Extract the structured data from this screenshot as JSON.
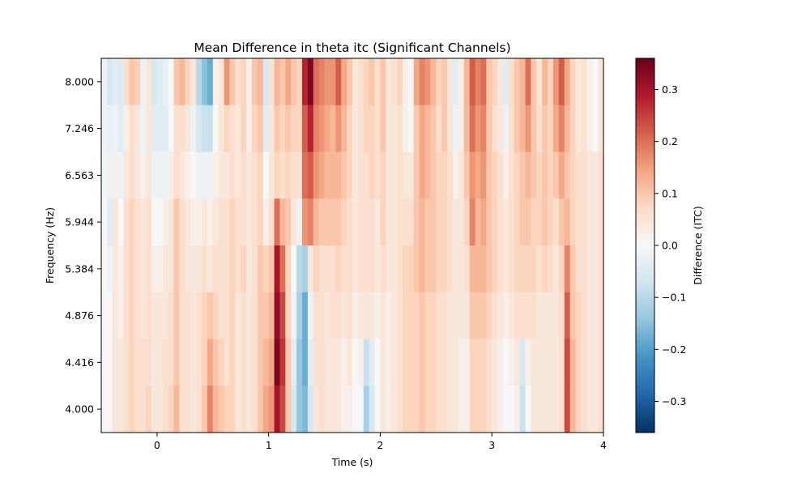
{
  "chart_data": {
    "type": "heatmap",
    "title": "Mean Difference in theta itc (Significant Channels)",
    "xlabel": "Time (s)",
    "ylabel": "Frequency (Hz)",
    "xlim": [
      -0.5,
      4.0
    ],
    "x_ticks": [
      0,
      1,
      2,
      3,
      4
    ],
    "y_tick_labels": [
      "8.000",
      "7.246",
      "6.563",
      "5.944",
      "5.384",
      "4.876",
      "4.416",
      "4.000"
    ],
    "colorbar": {
      "label": "Difference (ITC)",
      "vmin": -0.36,
      "vmax": 0.36,
      "ticks": [
        -0.3,
        -0.2,
        -0.1,
        0.0,
        0.1,
        0.2,
        0.3
      ],
      "tick_labels": [
        "−0.3",
        "−0.2",
        "−0.1",
        "0.0",
        "0.1",
        "0.2",
        "0.3"
      ],
      "colormap": "RdBu_r"
    },
    "time_step": 0.05,
    "time_start": -0.5,
    "rows": [
      {
        "freq": "8.000",
        "values": [
          -0.02,
          -0.06,
          -0.04,
          -0.05,
          0.06,
          0.1,
          0.09,
          -0.02,
          0.05,
          -0.06,
          -0.04,
          -0.03,
          0.0,
          0.1,
          0.12,
          0.08,
          0.04,
          -0.1,
          -0.15,
          -0.18,
          0.02,
          0.04,
          0.16,
          0.1,
          0.06,
          0.08,
          0.02,
          0.1,
          0.12,
          -0.06,
          0.05,
          0.12,
          0.1,
          0.14,
          0.1,
          0.08,
          0.28,
          0.34,
          0.2,
          0.18,
          0.16,
          0.16,
          0.22,
          0.14,
          0.1,
          0.04,
          0.06,
          0.08,
          0.1,
          0.06,
          0.1,
          0.04,
          0.06,
          0.08,
          0.02,
          0.0,
          0.14,
          0.18,
          0.16,
          0.12,
          0.08,
          0.1,
          0.04,
          -0.04,
          0.02,
          0.12,
          0.22,
          0.18,
          0.2,
          0.1,
          0.08,
          0.04,
          -0.04,
          0.06,
          0.1,
          0.12,
          0.2,
          0.1,
          0.05,
          0.12,
          0.08,
          0.16,
          0.22,
          0.14,
          0.08,
          0.04,
          0.06,
          0.02,
          0.0,
          0.04,
          0.08
        ]
      },
      {
        "freq": "7.246",
        "values": [
          -0.02,
          -0.03,
          -0.02,
          -0.04,
          0.02,
          0.06,
          0.04,
          -0.02,
          0.04,
          -0.04,
          -0.04,
          -0.04,
          0.0,
          0.06,
          0.06,
          0.04,
          -0.02,
          -0.06,
          -0.08,
          -0.08,
          0.0,
          0.04,
          0.08,
          0.06,
          0.04,
          0.08,
          0.02,
          0.08,
          0.1,
          -0.04,
          0.04,
          0.1,
          0.08,
          0.1,
          0.08,
          0.08,
          0.22,
          0.28,
          0.18,
          0.16,
          0.14,
          0.12,
          0.16,
          0.12,
          0.08,
          0.04,
          0.06,
          0.08,
          0.08,
          0.06,
          0.1,
          0.04,
          0.04,
          0.06,
          0.02,
          0.0,
          0.1,
          0.14,
          0.12,
          0.1,
          0.06,
          0.1,
          0.04,
          -0.02,
          0.02,
          0.12,
          0.2,
          0.16,
          0.18,
          0.1,
          0.06,
          0.04,
          -0.02,
          0.06,
          0.1,
          0.12,
          0.16,
          0.1,
          0.06,
          0.1,
          0.08,
          0.14,
          0.18,
          0.12,
          0.08,
          0.04,
          0.06,
          0.02,
          0.0,
          0.04,
          0.08
        ]
      },
      {
        "freq": "6.563",
        "values": [
          -0.01,
          -0.02,
          0.02,
          -0.02,
          0.04,
          0.06,
          0.04,
          0.02,
          0.04,
          -0.02,
          -0.02,
          -0.02,
          0.02,
          0.06,
          0.04,
          0.02,
          0.0,
          -0.02,
          -0.02,
          -0.02,
          0.02,
          0.04,
          0.04,
          0.06,
          0.04,
          0.06,
          0.04,
          0.06,
          0.08,
          0.0,
          0.04,
          0.08,
          0.06,
          0.08,
          0.06,
          0.06,
          0.2,
          0.22,
          0.16,
          0.14,
          0.12,
          0.12,
          0.12,
          0.1,
          0.08,
          0.04,
          0.06,
          0.06,
          0.08,
          0.06,
          0.08,
          0.04,
          0.04,
          0.06,
          0.04,
          0.04,
          0.1,
          0.14,
          0.12,
          0.1,
          0.08,
          0.08,
          0.06,
          0.02,
          0.04,
          0.1,
          0.16,
          0.14,
          0.16,
          0.1,
          0.08,
          0.06,
          0.02,
          0.06,
          0.08,
          0.1,
          0.12,
          0.1,
          0.08,
          0.1,
          0.08,
          0.1,
          0.14,
          0.1,
          0.08,
          0.06,
          0.06,
          0.04,
          0.04,
          0.06,
          0.06
        ]
      },
      {
        "freq": "5.944",
        "values": [
          0.0,
          -0.04,
          0.04,
          0.0,
          0.06,
          0.08,
          0.06,
          0.04,
          0.06,
          0.0,
          0.0,
          0.02,
          0.04,
          0.1,
          0.06,
          0.04,
          0.02,
          0.02,
          0.04,
          0.02,
          0.04,
          0.06,
          0.06,
          0.08,
          0.06,
          0.06,
          0.04,
          0.06,
          0.08,
          0.02,
          0.06,
          0.2,
          0.12,
          0.1,
          0.04,
          -0.02,
          0.16,
          0.18,
          0.12,
          0.1,
          0.1,
          0.1,
          0.1,
          0.08,
          0.06,
          0.04,
          0.06,
          0.06,
          0.06,
          0.04,
          0.08,
          0.04,
          0.04,
          0.06,
          0.06,
          0.06,
          0.1,
          0.12,
          0.1,
          0.1,
          0.08,
          0.08,
          0.06,
          0.04,
          0.04,
          0.08,
          0.18,
          0.12,
          0.14,
          0.1,
          0.08,
          0.06,
          0.04,
          0.06,
          0.08,
          0.1,
          0.1,
          0.08,
          0.08,
          0.1,
          0.08,
          0.06,
          0.1,
          0.12,
          0.08,
          0.06,
          0.06,
          0.04,
          0.04,
          0.06,
          0.06
        ]
      },
      {
        "freq": "5.384",
        "values": [
          0.0,
          -0.02,
          0.04,
          0.02,
          0.06,
          0.08,
          0.06,
          0.04,
          0.06,
          0.02,
          0.02,
          0.04,
          0.04,
          0.1,
          0.06,
          0.04,
          0.04,
          0.04,
          0.06,
          0.04,
          0.06,
          0.06,
          0.06,
          0.08,
          0.06,
          0.08,
          0.04,
          0.06,
          0.1,
          0.08,
          0.1,
          0.3,
          0.2,
          0.08,
          0.0,
          -0.1,
          -0.12,
          0.04,
          0.08,
          0.06,
          0.06,
          0.06,
          0.08,
          0.06,
          0.06,
          0.04,
          0.06,
          0.06,
          0.06,
          0.04,
          0.06,
          0.04,
          0.04,
          0.06,
          0.08,
          0.08,
          0.1,
          0.12,
          0.1,
          0.1,
          0.08,
          0.08,
          0.06,
          0.04,
          0.04,
          0.06,
          0.12,
          0.12,
          0.12,
          0.1,
          0.08,
          0.06,
          0.04,
          0.06,
          0.08,
          0.08,
          0.08,
          0.08,
          0.06,
          0.08,
          0.06,
          0.04,
          0.08,
          0.18,
          0.1,
          0.06,
          0.06,
          0.04,
          0.04,
          0.06,
          0.06
        ]
      },
      {
        "freq": "4.876",
        "values": [
          0.0,
          0.0,
          0.04,
          0.02,
          0.06,
          0.08,
          0.06,
          0.04,
          0.06,
          0.04,
          0.04,
          0.04,
          0.06,
          0.1,
          0.06,
          0.06,
          0.04,
          0.06,
          0.08,
          0.1,
          0.08,
          0.06,
          0.06,
          0.08,
          0.04,
          0.06,
          0.04,
          0.06,
          0.1,
          0.1,
          0.12,
          0.32,
          0.24,
          0.08,
          -0.02,
          -0.12,
          -0.18,
          -0.02,
          0.06,
          0.06,
          0.04,
          0.06,
          0.06,
          0.04,
          0.06,
          0.02,
          0.04,
          0.04,
          0.04,
          0.02,
          0.04,
          0.02,
          0.04,
          0.06,
          0.08,
          0.08,
          0.08,
          0.1,
          0.08,
          0.08,
          0.06,
          0.06,
          0.04,
          0.04,
          0.04,
          0.04,
          0.1,
          0.1,
          0.1,
          0.08,
          0.06,
          0.04,
          0.02,
          0.04,
          0.06,
          0.06,
          0.06,
          0.06,
          0.04,
          0.04,
          0.04,
          0.04,
          0.06,
          0.22,
          0.1,
          0.08,
          0.06,
          0.04,
          0.04,
          0.06,
          0.06
        ]
      },
      {
        "freq": "4.416",
        "values": [
          0.0,
          0.0,
          0.04,
          0.04,
          0.06,
          0.08,
          0.06,
          0.06,
          0.06,
          0.04,
          0.04,
          0.06,
          0.06,
          0.1,
          0.06,
          0.06,
          0.04,
          0.06,
          0.08,
          0.14,
          0.1,
          0.08,
          0.06,
          0.08,
          0.04,
          0.06,
          0.04,
          0.06,
          0.1,
          0.12,
          0.14,
          0.34,
          0.26,
          0.1,
          -0.04,
          -0.14,
          -0.18,
          -0.04,
          0.06,
          0.06,
          0.04,
          0.04,
          0.04,
          0.02,
          0.04,
          0.0,
          0.02,
          -0.08,
          -0.04,
          0.0,
          0.04,
          0.02,
          0.04,
          0.06,
          0.08,
          0.08,
          0.08,
          0.1,
          0.08,
          0.08,
          0.06,
          0.06,
          0.04,
          0.04,
          0.02,
          0.02,
          0.08,
          0.08,
          0.08,
          0.06,
          0.04,
          0.02,
          0.0,
          0.02,
          0.04,
          -0.06,
          0.02,
          0.04,
          0.04,
          0.04,
          0.04,
          0.04,
          0.06,
          0.24,
          0.12,
          0.08,
          0.06,
          0.04,
          0.04,
          0.06,
          0.06
        ]
      },
      {
        "freq": "4.000",
        "values": [
          0.0,
          0.0,
          0.04,
          0.04,
          0.06,
          0.08,
          0.06,
          0.06,
          0.08,
          0.04,
          0.04,
          0.06,
          0.08,
          0.12,
          0.06,
          0.06,
          0.04,
          0.06,
          0.1,
          0.18,
          0.12,
          0.1,
          0.08,
          0.08,
          0.04,
          0.06,
          0.04,
          0.06,
          0.1,
          0.14,
          0.16,
          0.3,
          0.24,
          0.1,
          -0.06,
          -0.14,
          -0.16,
          -0.06,
          0.04,
          0.06,
          0.04,
          0.04,
          0.04,
          0.02,
          0.02,
          0.0,
          0.0,
          -0.12,
          -0.06,
          0.0,
          0.04,
          0.02,
          0.04,
          0.06,
          0.08,
          0.08,
          0.08,
          0.1,
          0.08,
          0.08,
          0.06,
          0.06,
          0.04,
          0.04,
          0.02,
          0.02,
          0.08,
          0.08,
          0.08,
          0.06,
          0.04,
          0.02,
          0.0,
          0.0,
          0.02,
          -0.08,
          0.0,
          0.04,
          0.04,
          0.04,
          0.04,
          0.04,
          0.06,
          0.24,
          0.12,
          0.08,
          0.06,
          0.04,
          0.04,
          0.06,
          0.06
        ]
      }
    ]
  }
}
